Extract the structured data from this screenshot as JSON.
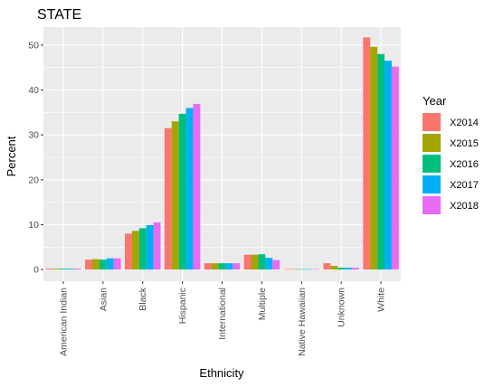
{
  "chart_data": {
    "type": "bar",
    "title": "STATE",
    "xlabel": "Ethnicity",
    "ylabel": "Percent",
    "ylim": [
      -2.6,
      54
    ],
    "yticks": [
      "0",
      "10",
      "20",
      "30",
      "40",
      "50"
    ],
    "categories": [
      "American Indian",
      "Asian",
      "Black",
      "Hispanic",
      "International",
      "Multiple",
      "Native Hawaiian",
      "Unknown",
      "White"
    ],
    "legend": {
      "title": "Year",
      "position": "right"
    },
    "grid": true,
    "series": [
      {
        "name": "X2014",
        "color": "#F8766D",
        "values": [
          0.2,
          2.2,
          8.0,
          31.5,
          1.4,
          3.3,
          0.1,
          1.4,
          51.7
        ]
      },
      {
        "name": "X2015",
        "color": "#A3A500",
        "values": [
          0.2,
          2.3,
          8.6,
          33.0,
          1.4,
          3.3,
          0.1,
          0.8,
          49.6
        ]
      },
      {
        "name": "X2016",
        "color": "#00BF7D",
        "values": [
          0.2,
          2.2,
          9.2,
          34.7,
          1.4,
          3.4,
          0.1,
          0.4,
          48.0
        ]
      },
      {
        "name": "X2017",
        "color": "#00B0F6",
        "values": [
          0.2,
          2.5,
          9.9,
          36.0,
          1.4,
          2.6,
          0.1,
          0.4,
          46.5
        ]
      },
      {
        "name": "X2018",
        "color": "#E76BF3",
        "values": [
          0.2,
          2.5,
          10.5,
          36.9,
          1.4,
          2.1,
          0.1,
          0.4,
          45.2
        ]
      }
    ]
  }
}
